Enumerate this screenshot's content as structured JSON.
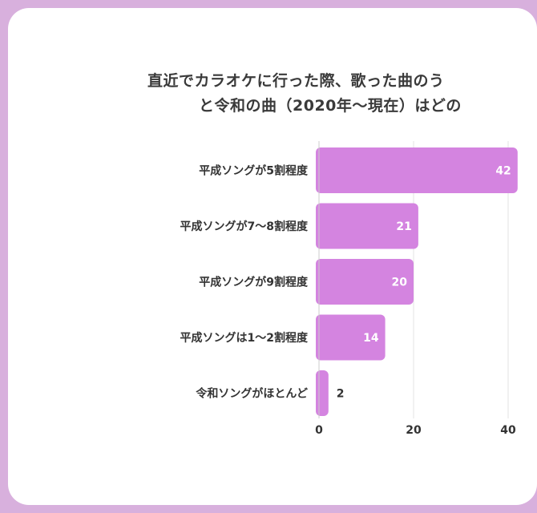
{
  "title_lines": [
    "直近でカラオケに行った際、歌った曲のう",
    "と令和の曲（2020年〜現在）はどの"
  ],
  "colors": {
    "bar": "#d484e0",
    "background": "#d8b0dd",
    "card": "#ffffff",
    "value_inside": "#ffffff",
    "value_outside": "#333333"
  },
  "chart_data": {
    "type": "bar",
    "orientation": "horizontal",
    "categories": [
      "平成ソングが5割程度",
      "平成ソングが7〜8割程度",
      "平成ソングが9割程度",
      "平成ソングは1〜2割程度",
      "令和ソングがほとんど"
    ],
    "values": [
      42,
      21,
      20,
      14,
      2
    ],
    "value_labels": [
      "42",
      "21",
      "20",
      "14",
      "2"
    ],
    "x_ticks": [
      "0",
      "20",
      "40"
    ],
    "xlim": [
      0,
      45
    ],
    "grid": true
  }
}
